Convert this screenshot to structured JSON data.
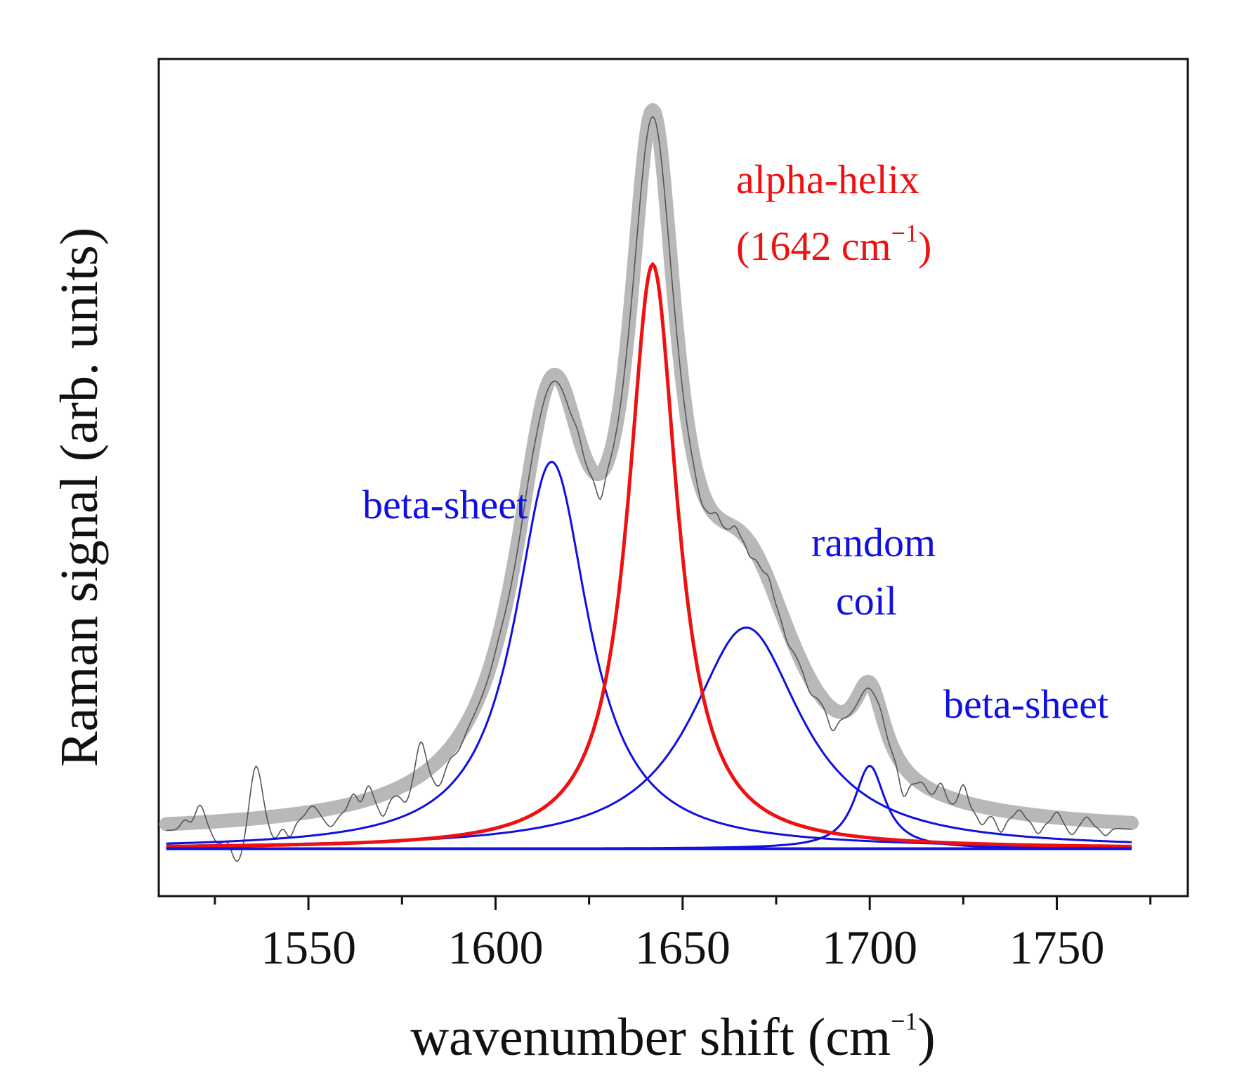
{
  "chart_data": {
    "type": "line",
    "title": "",
    "xlabel_text": "wavenumber shift (cm",
    "xlabel_sup": "−1",
    "xlabel_close": ")",
    "ylabel": "Raman signal (arb. units)",
    "xlim": [
      1510,
      1785
    ],
    "ylim": [
      -0.06,
      1.0
    ],
    "x_range": [
      1512,
      1770
    ],
    "major_ticks": [
      1550,
      1600,
      1650,
      1700,
      1750
    ],
    "minor_ticks": [
      1525,
      1575,
      1625,
      1675,
      1725,
      1775
    ],
    "grid": false,
    "legend": "none",
    "baseline": 0.0,
    "components": [
      {
        "name": "beta-sheet",
        "center": 1615,
        "amplitude": 0.49,
        "hwhm": 12,
        "color": "#1010e0"
      },
      {
        "name": "alpha-helix",
        "center": 1642,
        "amplitude": 0.74,
        "hwhm": 8,
        "color": "#ee1111"
      },
      {
        "name": "random coil",
        "center": 1667,
        "amplitude": 0.28,
        "hwhm": 18,
        "color": "#1010e0"
      },
      {
        "name": "beta-sheet",
        "center": 1700,
        "amplitude": 0.105,
        "hwhm": 5,
        "color": "#1010e0"
      }
    ],
    "fit_offset": 0.018,
    "fit_color": "#b8b8b8",
    "raw_color": "#555555",
    "noise": [
      {
        "center": 1517,
        "amp": 0.012,
        "width": 1.5
      },
      {
        "center": 1521,
        "amp": 0.03,
        "width": 1.8
      },
      {
        "center": 1526,
        "amp": -0.02,
        "width": 2
      },
      {
        "center": 1531,
        "amp": -0.045,
        "width": 2.5
      },
      {
        "center": 1536,
        "amp": 0.075,
        "width": 2.2
      },
      {
        "center": 1541,
        "amp": -0.02,
        "width": 1.8
      },
      {
        "center": 1545,
        "amp": -0.02,
        "width": 1.5
      },
      {
        "center": 1551,
        "amp": 0.015,
        "width": 2
      },
      {
        "center": 1556,
        "amp": -0.015,
        "width": 2
      },
      {
        "center": 1562,
        "amp": 0.02,
        "width": 1.5
      },
      {
        "center": 1566,
        "amp": 0.025,
        "width": 1.5
      },
      {
        "center": 1570,
        "amp": -0.02,
        "width": 1.5
      },
      {
        "center": 1576,
        "amp": -0.015,
        "width": 1.5
      },
      {
        "center": 1580,
        "amp": 0.05,
        "width": 1.8
      },
      {
        "center": 1585,
        "amp": -0.025,
        "width": 2
      },
      {
        "center": 1590,
        "amp": -0.01,
        "width": 2
      },
      {
        "center": 1601,
        "amp": 0.005,
        "width": 2
      },
      {
        "center": 1609,
        "amp": 0.005,
        "width": 2
      },
      {
        "center": 1622,
        "amp": 0.012,
        "width": 1.5
      },
      {
        "center": 1628,
        "amp": -0.025,
        "width": 1.3
      },
      {
        "center": 1655,
        "amp": -0.01,
        "width": 1.5
      },
      {
        "center": 1659,
        "amp": 0.012,
        "width": 1.2
      },
      {
        "center": 1664,
        "amp": 0.01,
        "width": 1.2
      },
      {
        "center": 1668,
        "amp": -0.01,
        "width": 1.2
      },
      {
        "center": 1673,
        "amp": 0.012,
        "width": 1.2
      },
      {
        "center": 1678,
        "amp": -0.01,
        "width": 1.5
      },
      {
        "center": 1684,
        "amp": -0.01,
        "width": 1.5
      },
      {
        "center": 1690,
        "amp": -0.02,
        "width": 1.5
      },
      {
        "center": 1703,
        "amp": 0.01,
        "width": 1.5
      },
      {
        "center": 1709,
        "amp": -0.03,
        "width": 1.5
      },
      {
        "center": 1714,
        "amp": 0.01,
        "width": 1.5
      },
      {
        "center": 1719,
        "amp": 0.022,
        "width": 1.5
      },
      {
        "center": 1725,
        "amp": 0.03,
        "width": 1.5
      },
      {
        "center": 1730,
        "amp": -0.015,
        "width": 1.5
      },
      {
        "center": 1735,
        "amp": -0.02,
        "width": 1.5
      },
      {
        "center": 1740,
        "amp": 0.012,
        "width": 1.5
      },
      {
        "center": 1745,
        "amp": -0.015,
        "width": 1.5
      },
      {
        "center": 1750,
        "amp": 0.015,
        "width": 1.5
      },
      {
        "center": 1754,
        "amp": -0.012,
        "width": 1.5
      },
      {
        "center": 1758,
        "amp": 0.012,
        "width": 1.5
      },
      {
        "center": 1763,
        "amp": -0.01,
        "width": 1.5
      }
    ],
    "annotations": {
      "alpha_line1": "alpha-helix",
      "alpha_line2_open": "(1642 cm",
      "alpha_line2_sup": "−1",
      "alpha_line2_close": ")",
      "beta_left": "beta-sheet",
      "random_line1": "random",
      "random_line2": "coil",
      "beta_right": "beta-sheet"
    },
    "colors": {
      "red": "#ee1111",
      "blue": "#1010e0"
    }
  }
}
